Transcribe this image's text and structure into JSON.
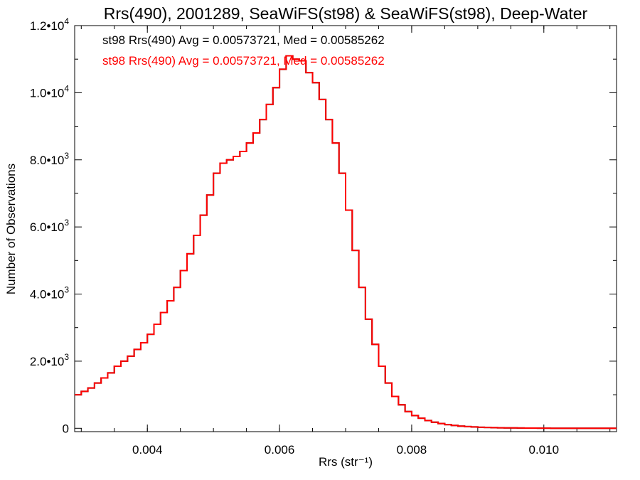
{
  "chart_data": {
    "type": "line",
    "step": true,
    "title": "Rrs(490), 2001289, SeaWiFS(st98) & SeaWiFS(st98), Deep-Water",
    "xlabel": "Rrs (str⁻¹)",
    "ylabel": "Number of Observations",
    "xlim": [
      0.0029,
      0.0111
    ],
    "ylim": [
      -100,
      12000
    ],
    "x_ticks": [
      0.004,
      0.006,
      0.008,
      0.01
    ],
    "x_tick_labels": [
      "0.004",
      "0.006",
      "0.008",
      "0.010"
    ],
    "y_ticks": [
      0,
      2000,
      4000,
      6000,
      8000,
      10000,
      12000
    ],
    "y_tick_labels": [
      {
        "mantissa": "0",
        "exp": ""
      },
      {
        "mantissa": "2.0•10",
        "exp": "3"
      },
      {
        "mantissa": "4.0•10",
        "exp": "3"
      },
      {
        "mantissa": "6.0•10",
        "exp": "3"
      },
      {
        "mantissa": "8.0•10",
        "exp": "3"
      },
      {
        "mantissa": "1.0•10",
        "exp": "4"
      },
      {
        "mantissa": "1.2•10",
        "exp": "4"
      }
    ],
    "grid": false,
    "annotations": [
      {
        "text": "st98 Rrs(490) Avg = 0.00573721, Med = 0.00585262",
        "color": "#000000"
      },
      {
        "text": "st98 Rrs(490) Avg = 0.00573721, Med = 0.00585262",
        "color": "#ff0000"
      }
    ],
    "series": [
      {
        "color": "#000000",
        "x": [
          0.0029,
          0.003,
          0.0031,
          0.0032,
          0.0033,
          0.0034,
          0.0035,
          0.0036,
          0.0037,
          0.0038,
          0.0039,
          0.004,
          0.0041,
          0.0042,
          0.0043,
          0.0044,
          0.0045,
          0.0046,
          0.0047,
          0.0048,
          0.0049,
          0.005,
          0.0051,
          0.0052,
          0.0053,
          0.0054,
          0.0055,
          0.0056,
          0.0057,
          0.0058,
          0.0059,
          0.006,
          0.0061,
          0.0062,
          0.0063,
          0.0064,
          0.0065,
          0.0066,
          0.0067,
          0.0068,
          0.0069,
          0.007,
          0.0071,
          0.0072,
          0.0073,
          0.0074,
          0.0075,
          0.0076,
          0.0077,
          0.0078,
          0.0079,
          0.008,
          0.0081,
          0.0082,
          0.0083,
          0.0084,
          0.0085,
          0.0086,
          0.0087,
          0.0088,
          0.0089,
          0.009,
          0.0091,
          0.0092,
          0.0093,
          0.0094,
          0.0095,
          0.0096,
          0.0097,
          0.0098,
          0.0099,
          0.01,
          0.0101,
          0.0102,
          0.0103,
          0.0104,
          0.0105,
          0.0106,
          0.0107,
          0.0108,
          0.0109,
          0.011,
          0.0111
        ],
        "y": [
          1000,
          1100,
          1200,
          1350,
          1500,
          1650,
          1850,
          2000,
          2150,
          2350,
          2550,
          2800,
          3100,
          3450,
          3800,
          4200,
          4700,
          5200,
          5750,
          6350,
          6950,
          7600,
          7900,
          8000,
          8100,
          8250,
          8500,
          8800,
          9200,
          9650,
          10150,
          10700,
          11100,
          11000,
          10950,
          10600,
          10300,
          9800,
          9200,
          8500,
          7600,
          6500,
          5300,
          4200,
          3250,
          2500,
          1850,
          1350,
          950,
          700,
          500,
          380,
          300,
          230,
          180,
          140,
          110,
          85,
          65,
          50,
          40,
          30,
          25,
          20,
          15,
          12,
          10,
          8,
          6,
          5,
          4,
          3,
          2,
          2,
          1,
          1,
          1,
          0,
          0,
          0,
          0,
          0,
          0
        ]
      },
      {
        "color": "#ff0000",
        "x": [
          0.0029,
          0.003,
          0.0031,
          0.0032,
          0.0033,
          0.0034,
          0.0035,
          0.0036,
          0.0037,
          0.0038,
          0.0039,
          0.004,
          0.0041,
          0.0042,
          0.0043,
          0.0044,
          0.0045,
          0.0046,
          0.0047,
          0.0048,
          0.0049,
          0.005,
          0.0051,
          0.0052,
          0.0053,
          0.0054,
          0.0055,
          0.0056,
          0.0057,
          0.0058,
          0.0059,
          0.006,
          0.0061,
          0.0062,
          0.0063,
          0.0064,
          0.0065,
          0.0066,
          0.0067,
          0.0068,
          0.0069,
          0.007,
          0.0071,
          0.0072,
          0.0073,
          0.0074,
          0.0075,
          0.0076,
          0.0077,
          0.0078,
          0.0079,
          0.008,
          0.0081,
          0.0082,
          0.0083,
          0.0084,
          0.0085,
          0.0086,
          0.0087,
          0.0088,
          0.0089,
          0.009,
          0.0091,
          0.0092,
          0.0093,
          0.0094,
          0.0095,
          0.0096,
          0.0097,
          0.0098,
          0.0099,
          0.01,
          0.0101,
          0.0102,
          0.0103,
          0.0104,
          0.0105,
          0.0106,
          0.0107,
          0.0108,
          0.0109,
          0.011,
          0.0111
        ],
        "y": [
          1000,
          1100,
          1200,
          1350,
          1500,
          1650,
          1850,
          2000,
          2150,
          2350,
          2550,
          2800,
          3100,
          3450,
          3800,
          4200,
          4700,
          5200,
          5750,
          6350,
          6950,
          7600,
          7900,
          8000,
          8100,
          8250,
          8500,
          8800,
          9200,
          9650,
          10150,
          10700,
          11100,
          11000,
          10950,
          10600,
          10300,
          9800,
          9200,
          8500,
          7600,
          6500,
          5300,
          4200,
          3250,
          2500,
          1850,
          1350,
          950,
          700,
          500,
          380,
          300,
          230,
          180,
          140,
          110,
          85,
          65,
          50,
          40,
          30,
          25,
          20,
          15,
          12,
          10,
          8,
          6,
          5,
          4,
          3,
          2,
          2,
          1,
          1,
          1,
          0,
          0,
          0,
          0,
          0,
          0
        ]
      }
    ]
  }
}
